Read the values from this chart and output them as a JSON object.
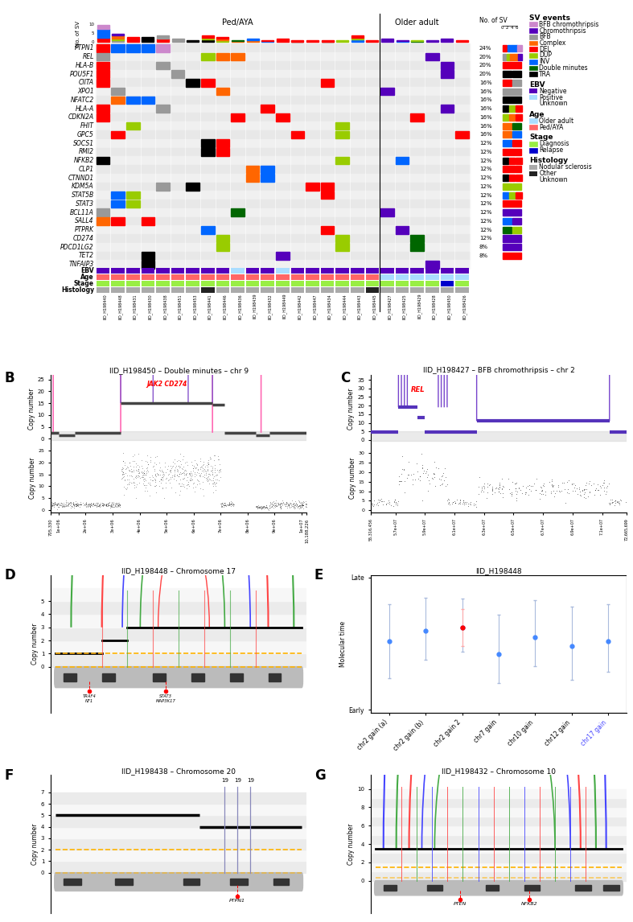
{
  "panel_A": {
    "genes": [
      "PTPN1",
      "REL",
      "HLA-B",
      "POU5F1",
      "CIITA",
      "XPO1",
      "NFATC2",
      "HLA-A",
      "CDKN2A",
      "FHIT",
      "GPC5",
      "SOCS1",
      "RMI2",
      "NFKB2",
      "CLP1",
      "CTNND1",
      "KDM5A",
      "STAT5B",
      "STAT3",
      "BCL11A",
      "SALL4",
      "PTPRK",
      "CD274",
      "PDCD1LG2",
      "TET2",
      "TNFAIP3"
    ],
    "samples": [
      "IID_H198440",
      "IID_H198448",
      "IID_H198431",
      "IID_H198430",
      "IID_H198438",
      "IID_H198451",
      "IID_H198453",
      "IID_H198441",
      "IID_H198446",
      "IID_H198436",
      "IID_H198439",
      "IID_H198432",
      "IID_H198449",
      "IID_H198442",
      "IID_H198447",
      "IID_H198434",
      "IID_H198444",
      "IID_H198443",
      "IID_H198445",
      "IID_H198427",
      "IID_H198425",
      "IID_H198429",
      "IID_H198428",
      "IID_H198450",
      "IID_H198426"
    ],
    "percentages": [
      24,
      20,
      20,
      20,
      16,
      16,
      16,
      16,
      16,
      16,
      16,
      12,
      12,
      12,
      12,
      12,
      12,
      12,
      12,
      12,
      12,
      12,
      12,
      8,
      8
    ],
    "sv_colors": {
      "BFB_chromothripsis": "#CC88CC",
      "Chromothripsis": "#5500BB",
      "BFB": "#999999",
      "Complex": "#FF6600",
      "DEL": "#FF0000",
      "DUP": "#99CC00",
      "INV": "#0066FF",
      "Double_minutes": "#006600",
      "TRA": "#000000"
    },
    "ebv_colors": {
      "Negative": "#5500BB",
      "Positive": "#AADDFF",
      "Unknown": "#FFFFFF"
    },
    "age_colors": {
      "Older_adult": "#AADDFF",
      "Ped/AYA": "#FF6666"
    },
    "stage_colors": {
      "Diagnosis": "#99EE44",
      "Relapse": "#0000CC"
    },
    "histology_colors": {
      "Nodular_sclerosis": "#AAAAAA",
      "Other": "#222222",
      "Unknown": "#FFFFFF"
    },
    "oncoplot_data": {
      "PTPN1": {
        "IID_H198440": "DEL",
        "IID_H198448": "INV",
        "IID_H198431": "INV",
        "IID_H198430": "INV",
        "IID_H198438": "BFB_chromothripsis"
      },
      "REL": {
        "IID_H198440": "BFB",
        "IID_H198441": "DUP",
        "IID_H198446": "Complex",
        "IID_H198436": "Complex",
        "IID_H198428": "Chromothripsis"
      },
      "HLA-B": {
        "IID_H198440": "DEL",
        "IID_H198438": "BFB",
        "IID_H198450": "Chromothripsis"
      },
      "POU5F1": {
        "IID_H198440": "DEL",
        "IID_H198451": "BFB",
        "IID_H198450": "Chromothripsis"
      },
      "CIITA": {
        "IID_H198440": "DEL",
        "IID_H198453": "TRA",
        "IID_H198441": "DEL",
        "IID_H198434": "DEL"
      },
      "XPO1": {
        "IID_H198448": "BFB",
        "IID_H198446": "Complex",
        "IID_H198427": "Chromothripsis"
      },
      "NFATC2": {
        "IID_H198448": "Complex",
        "IID_H198431": "INV",
        "IID_H198430": "INV"
      },
      "HLA-A": {
        "IID_H198440": "DEL",
        "IID_H198438": "BFB",
        "IID_H198450": "Chromothripsis",
        "IID_H198432": "DEL"
      },
      "CDKN2A": {
        "IID_H198440": "DEL",
        "IID_H198436": "DEL",
        "IID_H198449": "DEL",
        "IID_H198429": "DEL"
      },
      "FHIT": {
        "IID_H198431": "DUP",
        "IID_H198444": "DUP"
      },
      "GPC5": {
        "IID_H198448": "DEL",
        "IID_H198442": "DEL",
        "IID_H198444": "DUP",
        "IID_H198426": "DEL"
      },
      "SOCS1": {
        "IID_H198441": "TRA",
        "IID_H198446": "DEL"
      },
      "RMI2": {
        "IID_H198441": "TRA",
        "IID_H198446": "DEL"
      },
      "NFKB2": {
        "IID_H198440": "TRA",
        "IID_H198444": "DUP",
        "IID_H198425": "INV"
      },
      "CLP1": {
        "IID_H198439": "Complex",
        "IID_H198432": "INV"
      },
      "CTNND1": {
        "IID_H198439": "Complex",
        "IID_H198432": "INV"
      },
      "KDM5A": {
        "IID_H198453": "TRA",
        "IID_H198434": "DEL",
        "IID_H198447": "DEL",
        "IID_H198438": "BFB"
      },
      "STAT5B": {
        "IID_H198448": "INV",
        "IID_H198431": "DUP",
        "IID_H198434": "DEL"
      },
      "STAT3": {
        "IID_H198448": "INV",
        "IID_H198431": "DUP"
      },
      "BCL11A": {
        "IID_H198440": "BFB",
        "IID_H198436": "Double_minutes",
        "IID_H198427": "Chromothripsis"
      },
      "SALL4": {
        "IID_H198440": "Complex",
        "IID_H198448": "DEL",
        "IID_H198430": "DEL"
      },
      "PTPRK": {
        "IID_H198441": "INV",
        "IID_H198434": "DEL",
        "IID_H198425": "Chromothripsis"
      },
      "CD274": {
        "IID_H198446": "DUP",
        "IID_H198444": "DUP",
        "IID_H198429": "Double_minutes"
      },
      "PDCD1LG2": {
        "IID_H198446": "DUP",
        "IID_H198444": "DUP",
        "IID_H198429": "Double_minutes"
      },
      "TET2": {
        "IID_H198430": "TRA",
        "IID_H198449": "Chromothripsis"
      },
      "TNFAIP3": {
        "IID_H198430": "TRA",
        "IID_H198428": "Chromothripsis"
      }
    },
    "ebv_row": [
      "Negative",
      "Negative",
      "Negative",
      "Negative",
      "Negative",
      "Negative",
      "Negative",
      "Negative",
      "Negative",
      "Positive",
      "Negative",
      "Negative",
      "Positive",
      "Negative",
      "Negative",
      "Negative",
      "Negative",
      "Negative",
      "Negative",
      "Negative",
      "Negative",
      "Negative",
      "Negative",
      "Negative",
      "Negative"
    ],
    "age_row": [
      "Ped/AYA",
      "Ped/AYA",
      "Ped/AYA",
      "Ped/AYA",
      "Ped/AYA",
      "Ped/AYA",
      "Ped/AYA",
      "Ped/AYA",
      "Ped/AYA",
      "Ped/AYA",
      "Ped/AYA",
      "Ped/AYA",
      "Ped/AYA",
      "Ped/AYA",
      "Ped/AYA",
      "Ped/AYA",
      "Ped/AYA",
      "Ped/AYA",
      "Ped/AYA",
      "Older_adult",
      "Older_adult",
      "Older_adult",
      "Older_adult",
      "Older_adult",
      "Older_adult"
    ],
    "stage_row": [
      "Diagnosis",
      "Diagnosis",
      "Diagnosis",
      "Diagnosis",
      "Diagnosis",
      "Diagnosis",
      "Diagnosis",
      "Diagnosis",
      "Diagnosis",
      "Diagnosis",
      "Diagnosis",
      "Diagnosis",
      "Diagnosis",
      "Diagnosis",
      "Diagnosis",
      "Diagnosis",
      "Diagnosis",
      "Diagnosis",
      "Diagnosis",
      "Diagnosis",
      "Diagnosis",
      "Diagnosis",
      "Diagnosis",
      "Relapse",
      "Diagnosis"
    ],
    "histology_row": [
      "Nodular_sclerosis",
      "Nodular_sclerosis",
      "Nodular_sclerosis",
      "Nodular_sclerosis",
      "Nodular_sclerosis",
      "Nodular_sclerosis",
      "Nodular_sclerosis",
      "Other",
      "Nodular_sclerosis",
      "Nodular_sclerosis",
      "Nodular_sclerosis",
      "Nodular_sclerosis",
      "Nodular_sclerosis",
      "Nodular_sclerosis",
      "Nodular_sclerosis",
      "Nodular_sclerosis",
      "Nodular_sclerosis",
      "Nodular_sclerosis",
      "Other",
      "Nodular_sclerosis",
      "Nodular_sclerosis",
      "Nodular_sclerosis",
      "Nodular_sclerosis",
      "Nodular_sclerosis",
      "Nodular_sclerosis"
    ],
    "bar_heights": [
      10,
      5,
      3,
      3,
      4,
      2,
      1,
      4,
      3,
      1,
      2,
      1,
      2,
      1,
      1,
      1,
      1,
      4,
      1,
      2,
      1,
      1,
      1,
      2,
      1
    ],
    "bar_sv_types": [
      [
        "DEL",
        "INV",
        "INV",
        "BFB_chromothripsis"
      ],
      [
        "BFB",
        "DUP",
        "Complex",
        "Complex",
        "Chromothripsis"
      ],
      [
        "DEL"
      ],
      [
        "TRA",
        "TRA"
      ],
      [
        "DEL",
        "BFB"
      ],
      [
        "BFB"
      ],
      [
        "TRA"
      ],
      [
        "TRA",
        "DUP",
        "DEL"
      ],
      [
        "DUP",
        "Complex",
        "DEL"
      ],
      [
        "Complex",
        "Double_minutes"
      ],
      [
        "Complex",
        "INV"
      ],
      [
        "INV",
        "DEL"
      ],
      [
        "DEL"
      ],
      [
        "TRA",
        "DEL",
        "DEL"
      ],
      [
        "DEL"
      ],
      [
        "TRA",
        "DEL",
        "DEL"
      ],
      [
        "DUP",
        "DUP"
      ],
      [
        "INV",
        "DUP",
        "DEL"
      ],
      [
        "DEL"
      ],
      [
        "Chromothripsis"
      ],
      [
        "INV",
        "Chromothripsis"
      ],
      [
        "Double_minutes",
        "DUP"
      ],
      [
        "Chromothripsis"
      ],
      [
        "Chromothripsis"
      ],
      [
        "DEL"
      ]
    ],
    "ped_aya_divider": 19
  }
}
